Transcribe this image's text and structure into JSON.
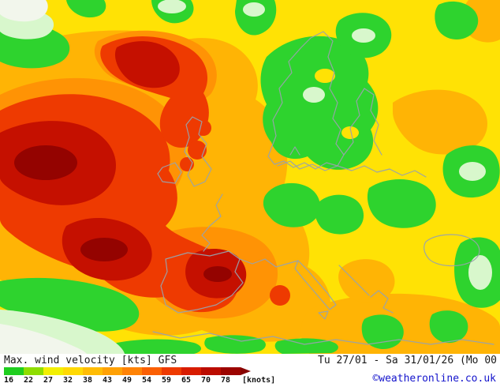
{
  "title_bar": {
    "title": "Max. wind velocity [kts] GFS",
    "date_range": "Tu 27/01 - Sa 31/01/26 (Mo 00",
    "copyright": "©weatheronline.co.uk"
  },
  "legend": {
    "values": [
      "16",
      "22",
      "27",
      "32",
      "38",
      "43",
      "49",
      "54",
      "59",
      "65",
      "70",
      "78"
    ],
    "unit": "[knots]",
    "colors": [
      "#1fce1f",
      "#8fdd00",
      "#f2ef02",
      "#ffd903",
      "#ffbc04",
      "#ffa105",
      "#ff8305",
      "#fb5f03",
      "#ee3a01",
      "#d81c00",
      "#bb0c00",
      "#9c0400"
    ],
    "arrow_color": "#870200"
  },
  "map": {
    "colors": {
      "base": "#ffe205",
      "orange": "#ffb405",
      "orange2": "#ff9305",
      "red": "#ee3a01",
      "darkred": "#c51000",
      "darkest": "#940300",
      "green": "#2ed32e",
      "pale": "#d8f7cc",
      "white": "#f2f6ec",
      "coast": "#98a2ac"
    }
  }
}
